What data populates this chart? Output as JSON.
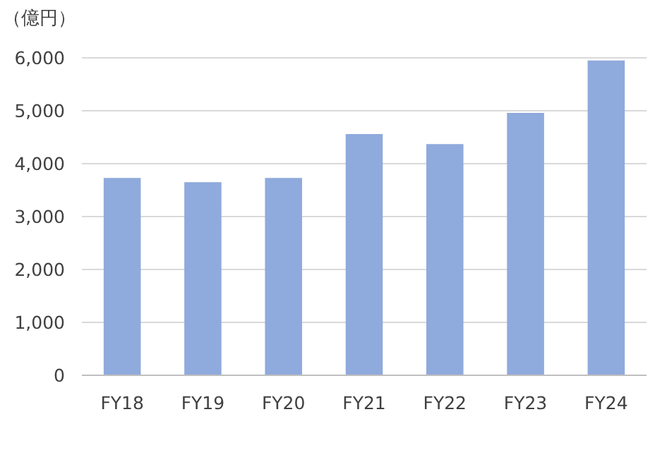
{
  "chart_data": {
    "type": "bar",
    "ylabel": "（億円）",
    "categories": [
      "FY18",
      "FY19",
      "FY20",
      "FY21",
      "FY22",
      "FY23",
      "FY24"
    ],
    "values": [
      3730,
      3650,
      3730,
      4560,
      4370,
      4960,
      5950
    ],
    "color": "#8faadc",
    "ylim": [
      0,
      6000
    ],
    "yticks": [
      0,
      {
        "value": 1000,
        "label": "1,000"
      },
      {
        "value": 2000,
        "label": "2,000"
      },
      {
        "value": 3000,
        "label": "3,000"
      },
      {
        "value": 4000,
        "label": "4,000"
      },
      {
        "value": 5000,
        "label": "5,000"
      },
      {
        "value": 6000,
        "label": "6,000"
      }
    ],
    "grid": "y"
  }
}
